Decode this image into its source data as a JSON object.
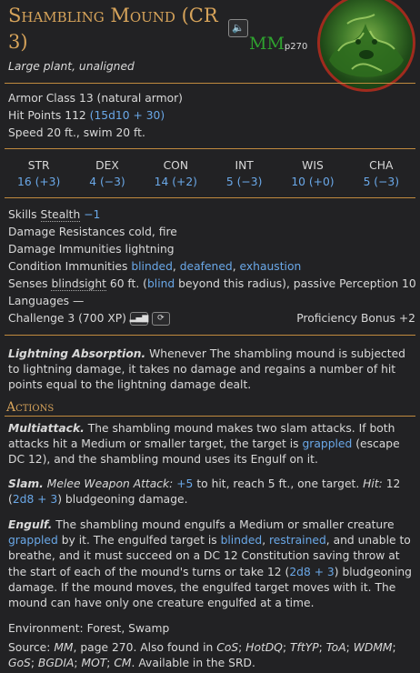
{
  "header": {
    "name": "Shambling Mound (CR 3)",
    "subtitle": "Large plant, unaligned",
    "sound_icon": "speaker-icon",
    "source_abbr": "MM",
    "source_page": "p270"
  },
  "stats": {
    "ac_label": "Armor Class",
    "ac_value": "13 (natural armor)",
    "hp_label": "Hit Points",
    "hp_value": "112",
    "hp_dice": "(15d10 + 30)",
    "speed_label": "Speed",
    "speed_value": "20 ft., swim 20 ft."
  },
  "abilities": [
    {
      "name": "STR",
      "value": "16 (+3)"
    },
    {
      "name": "DEX",
      "value": "4 (−3)"
    },
    {
      "name": "CON",
      "value": "14 (+2)"
    },
    {
      "name": "INT",
      "value": "5 (−3)"
    },
    {
      "name": "WIS",
      "value": "10 (+0)"
    },
    {
      "name": "CHA",
      "value": "5 (−3)"
    }
  ],
  "traits": {
    "skills_label": "Skills",
    "skills_name": "Stealth",
    "skills_value": "−1",
    "resist_label": "Damage Resistances",
    "resist_value": "cold, fire",
    "immune_label": "Damage Immunities",
    "immune_value": "lightning",
    "cond_label": "Condition Immunities",
    "cond_1": "blinded",
    "cond_2": "deafened",
    "cond_3": "exhaustion",
    "senses_label": "Senses",
    "senses_name": "blindsight",
    "senses_1": "60 ft. (",
    "senses_blind": "blind",
    "senses_2": " beyond this radius), passive Perception 10",
    "lang_label": "Languages",
    "lang_value": "—",
    "challenge_label": "Challenge",
    "challenge_value": "3 (700 XP)",
    "prof_label": "Proficiency Bonus",
    "prof_value": "+2"
  },
  "lightning": {
    "name": "Lightning Absorption.",
    "text": "The shambling mound is subjected to lightning damage, it takes no damage and regains a number of hit points equal to the lightning damage dealt.",
    "lead": "Whenever"
  },
  "actions_title": "Actions",
  "multiattack": {
    "name": "Multiattack.",
    "t1": "The shambling mound makes two slam attacks. If both attacks hit a Medium or smaller target, the target is",
    "link": "grappled",
    "t2": "(escape DC 12), and the shambling mound uses its Engulf on it."
  },
  "slam": {
    "name": "Slam.",
    "attack_type": "Melee Weapon Attack:",
    "bonus": "+5",
    "t1": "to hit, reach 5 ft., one target.",
    "hit_label": "Hit:",
    "t2": "12 (",
    "dice": "2d8 + 3",
    "t3": ") bludgeoning damage."
  },
  "engulf": {
    "name": "Engulf.",
    "t1": "The shambling mound engulfs a Medium or smaller creature",
    "link1": "grappled",
    "t2": "by it. The engulfed target is",
    "link2": "blinded",
    "link3": "restrained",
    "t3": ", and unable to breathe, and it must succeed on a DC 12 Constitution saving throw at the start of each of the mound's turns or take 12 (",
    "dice": "2d8 + 3",
    "t4": ") bludgeoning damage. If the mound moves, the engulfed target moves with it. The mound can have only one creature engulfed at a time."
  },
  "environment": {
    "label": "Environment:",
    "value": "Forest, Swamp"
  },
  "source": {
    "label": "Source:",
    "book": "MM",
    "t1": ", page 270. Also found in",
    "others": [
      "CoS",
      "HotDQ",
      "TftYP",
      "ToA",
      "WDMM",
      "GoS",
      "BGDIA",
      "MOT",
      "CM"
    ],
    "t2": ". Available in the SRD."
  }
}
